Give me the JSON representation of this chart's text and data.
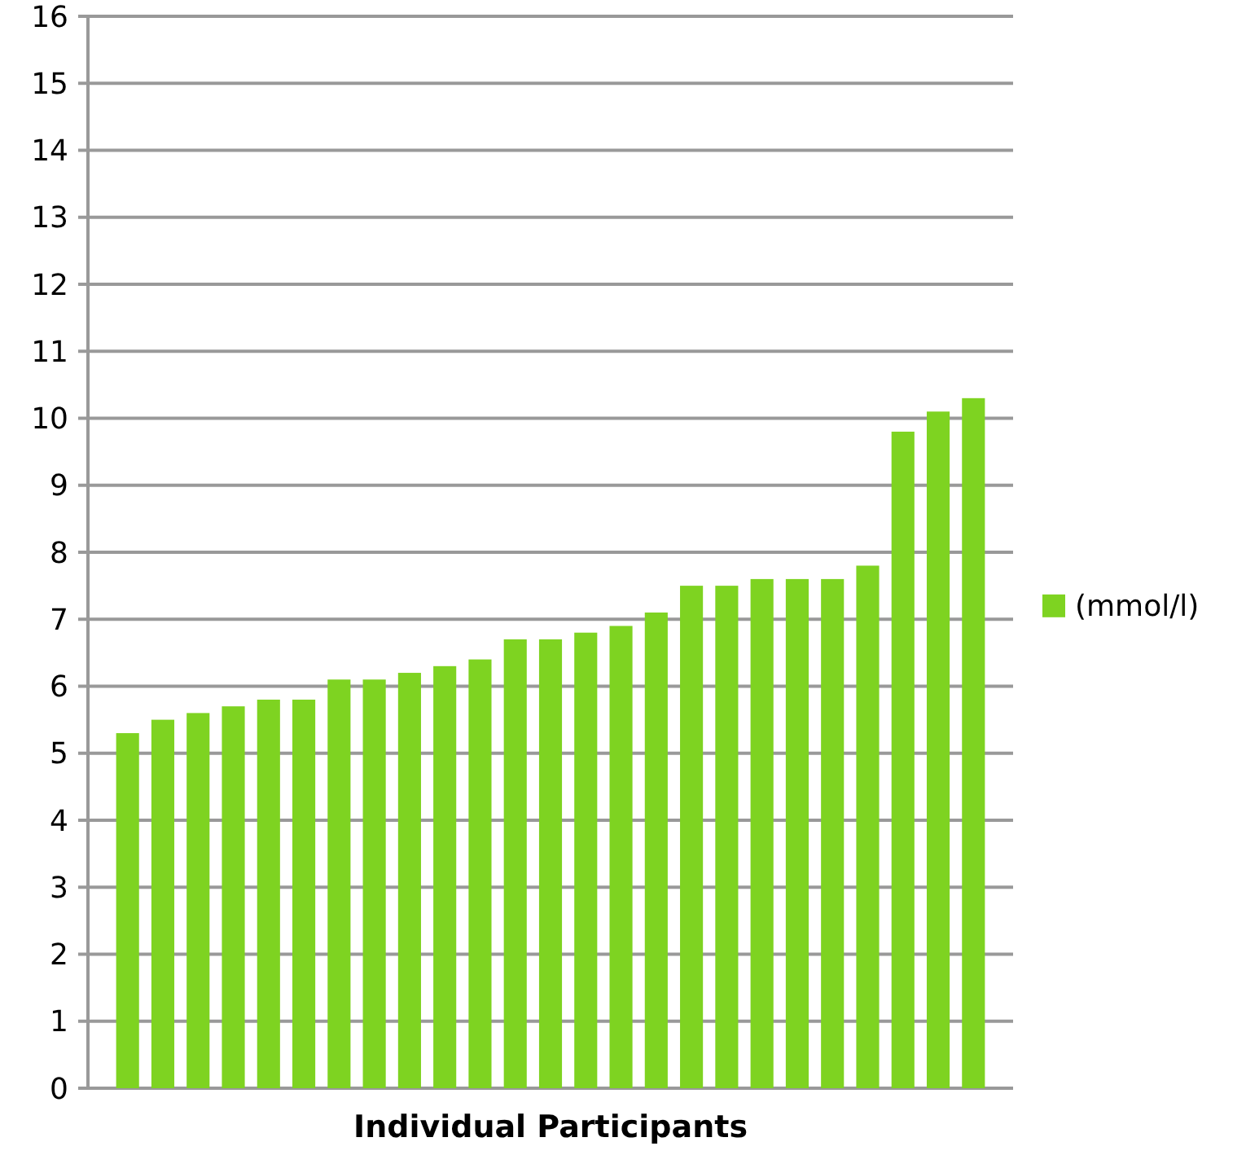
{
  "chart_data": {
    "type": "bar",
    "xlabel": "Individual Participants",
    "categories": [
      null,
      null,
      null,
      null,
      null,
      null,
      null,
      null,
      null,
      null,
      null,
      null,
      null,
      null,
      null,
      null,
      null,
      null,
      null,
      null,
      null,
      null,
      null,
      null,
      null
    ],
    "series": [
      {
        "name": "(mmol/l)",
        "color": "#7ed321",
        "values": [
          5.3,
          5.5,
          5.6,
          5.7,
          5.8,
          5.8,
          6.1,
          6.1,
          6.2,
          6.3,
          6.4,
          6.7,
          6.7,
          6.8,
          6.9,
          7.1,
          7.5,
          7.5,
          7.6,
          7.6,
          7.6,
          7.8,
          9.8,
          10.1,
          10.3
        ]
      }
    ],
    "ylim": [
      0,
      16
    ],
    "yticks": [
      0,
      1,
      2,
      3,
      4,
      5,
      6,
      7,
      8,
      9,
      10,
      11,
      12,
      13,
      14,
      15,
      16
    ],
    "grid": "y",
    "legend": "right"
  }
}
